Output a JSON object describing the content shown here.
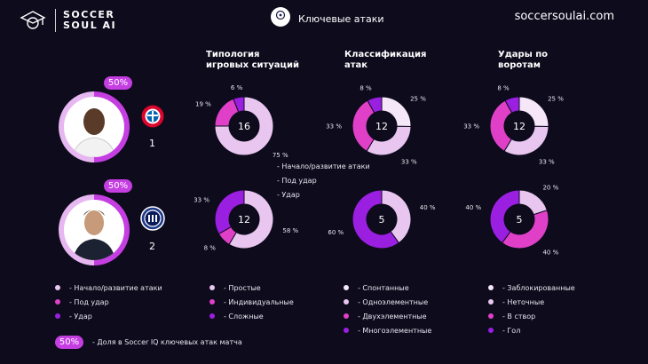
{
  "header": {
    "brand_line1": "SOCCER",
    "brand_line2": "SOUL AI",
    "title": "Ключевые атаки",
    "site": "soccersoulai.com"
  },
  "columns": [
    "Типология игровых ситуаций",
    "Классификация атак",
    "Удары по воротам"
  ],
  "column_lines": [
    [
      "Типология",
      "игровых ситуаций"
    ],
    [
      "Классификация",
      "атак"
    ],
    [
      "Удары по",
      "воротам"
    ]
  ],
  "teams": [
    {
      "badge": "50%",
      "rank": "1",
      "club": "bayern"
    },
    {
      "badge": "50%",
      "rank": "2",
      "club": "inter"
    }
  ],
  "middle_legend": [
    "- Начало/развитие атаки",
    "- Под удар",
    "- Удар"
  ],
  "legends": [
    {
      "items": [
        "- Начало/развитие атаки",
        "- Под удар",
        "- Удар"
      ],
      "colors": [
        "#e8c6f0",
        "#e040c8",
        "#9a1fe0"
      ]
    },
    {
      "items": [
        "- Простые",
        "- Индивидуальные",
        "- Сложные"
      ],
      "colors": [
        "#e8c6f0",
        "#e040c8",
        "#9a1fe0"
      ]
    },
    {
      "items": [
        "- Спонтанные",
        "- Одноэлементные",
        "- Двухэлементные",
        "- Многоэлементные"
      ],
      "colors": [
        "#f5e6f8",
        "#e8c6f0",
        "#e040c8",
        "#9a1fe0"
      ]
    },
    {
      "items": [
        "- Заблокированные",
        "- Неточные",
        "- В створ",
        "- Гол"
      ],
      "colors": [
        "#f5e6f8",
        "#e8c6f0",
        "#e040c8",
        "#9a1fe0"
      ]
    }
  ],
  "footer": {
    "badge": "50%",
    "text": "- Доля в Soccer IQ ключевых атак матча"
  },
  "chart_data": [
    {
      "type": "pie",
      "title": "Типология игровых ситуаций",
      "team": "1",
      "total": "16",
      "categories": [
        "Начало/развитие атаки",
        "Под удар",
        "Удар"
      ],
      "values": [
        75,
        19,
        6
      ],
      "labels": [
        "75 %",
        "19 %",
        "6 %"
      ],
      "colors": [
        "#e8c6f0",
        "#e040c8",
        "#9a1fe0"
      ]
    },
    {
      "type": "pie",
      "title": "Классификация атак",
      "team": "1",
      "total": "12",
      "categories": [
        "Спонтанные",
        "Одноэлементные",
        "Двухэлементные",
        "Многоэлементные"
      ],
      "values": [
        25,
        33,
        33,
        8
      ],
      "labels": [
        "25 %",
        "33 %",
        "33 %",
        "8 %"
      ],
      "colors": [
        "#f5e6f8",
        "#e8c6f0",
        "#e040c8",
        "#9a1fe0"
      ]
    },
    {
      "type": "pie",
      "title": "Удары по воротам",
      "team": "1",
      "total": "12",
      "categories": [
        "Заблокированные",
        "Неточные",
        "В створ",
        "Гол"
      ],
      "values": [
        25,
        33,
        33,
        8
      ],
      "labels": [
        "25 %",
        "33 %",
        "33 %",
        "8 %"
      ],
      "colors": [
        "#f5e6f8",
        "#e8c6f0",
        "#e040c8",
        "#9a1fe0"
      ]
    },
    {
      "type": "pie",
      "title": "Типология игровых ситуаций",
      "team": "2",
      "total": "12",
      "categories": [
        "Начало/развитие атаки",
        "Под удар",
        "Удар"
      ],
      "values": [
        58,
        8,
        33
      ],
      "labels": [
        "58 %",
        "8 %",
        "33 %"
      ],
      "colors": [
        "#e8c6f0",
        "#e040c8",
        "#9a1fe0"
      ]
    },
    {
      "type": "pie",
      "title": "Классификация атак",
      "team": "2",
      "total": "5",
      "categories": [
        "Одноэлементные",
        "Многоэлементные"
      ],
      "values": [
        40,
        60
      ],
      "labels": [
        "40 %",
        "60 %"
      ],
      "colors": [
        "#e8c6f0",
        "#9a1fe0"
      ]
    },
    {
      "type": "pie",
      "title": "Удары по воротам",
      "team": "2",
      "total": "5",
      "categories": [
        "Неточные",
        "В створ",
        "Гол"
      ],
      "values": [
        20,
        40,
        40
      ],
      "labels": [
        "20 %",
        "40 %",
        "40 %"
      ],
      "colors": [
        "#e8c6f0",
        "#e040c8",
        "#9a1fe0"
      ]
    }
  ]
}
